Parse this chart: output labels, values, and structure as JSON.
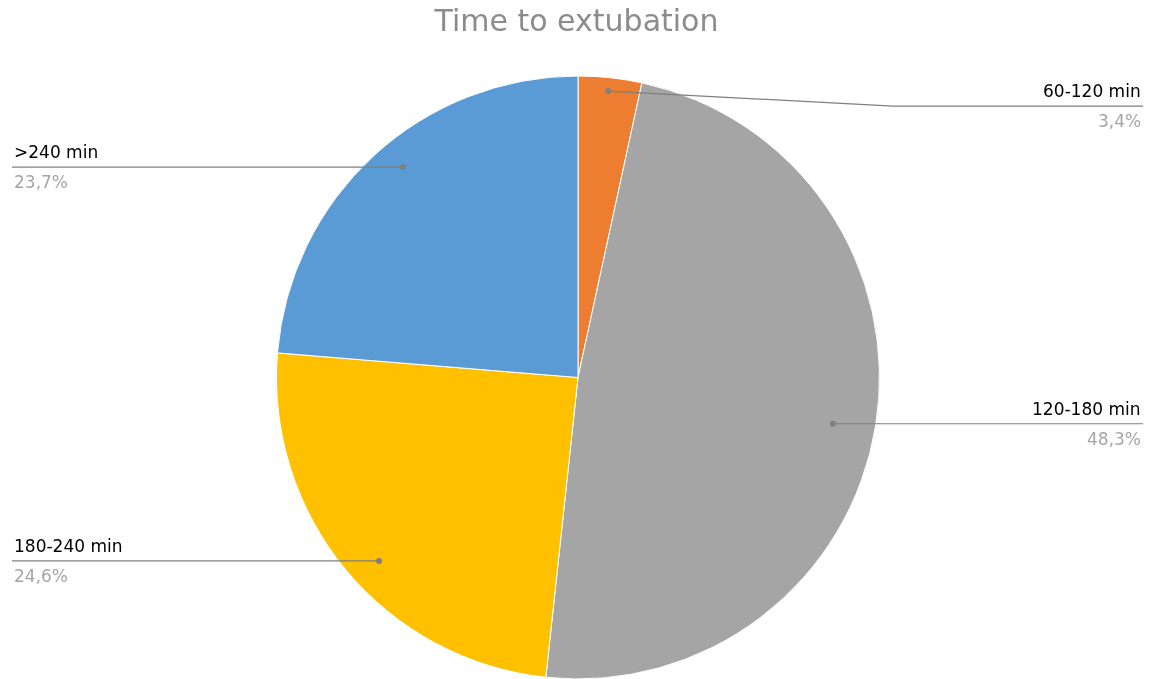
{
  "chart_data": {
    "type": "pie",
    "title": "Time to extubation",
    "categories": [
      "60-120 min",
      "120-180 min",
      "180-240 min",
      ">240 min"
    ],
    "values": [
      3.4,
      48.3,
      24.6,
      23.7
    ],
    "value_labels": [
      "3,4%",
      "48,3%",
      "24,6%",
      "23,7%"
    ],
    "colors": [
      "#ed7d31",
      "#a5a5a5",
      "#ffc000",
      "#5b9bd5"
    ],
    "legend": false
  }
}
